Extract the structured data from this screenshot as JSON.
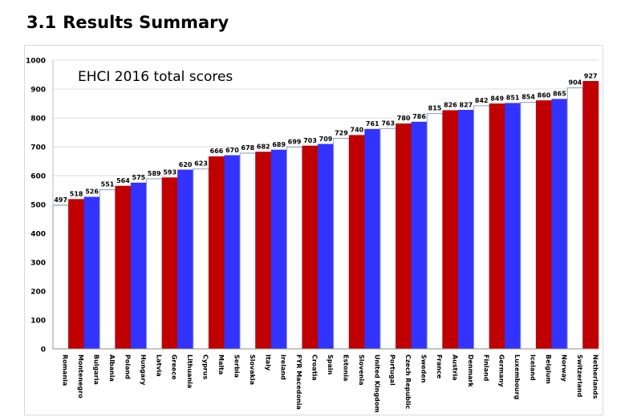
{
  "page": {
    "section_number": "3.1",
    "section_title": "Results Summary"
  },
  "colors": {
    "white_bar": "#ffffff",
    "red_bar": "#c00000",
    "blue_bar": "#3333ff",
    "outline": "#8a9bc7",
    "grid": "#dcdcdc"
  },
  "chart_data": {
    "type": "bar",
    "title": "EHCI 2016 total scores",
    "xlabel": "",
    "ylabel": "",
    "ylim": [
      0,
      1000
    ],
    "yticks": [
      0,
      100,
      200,
      300,
      400,
      500,
      600,
      700,
      800,
      900,
      1000
    ],
    "grid": true,
    "legend": "none",
    "categories": [
      "Romania",
      "Montenegro",
      "Bulgaria",
      "Albania",
      "Poland",
      "Hungary",
      "Latvia",
      "Greece",
      "Lithuania",
      "Cyprus",
      "Malta",
      "Serbia",
      "Slovakia",
      "Italy",
      "Ireland",
      "FYR Macedonia",
      "Croatia",
      "Spain",
      "Estonia",
      "Slovenia",
      "United Kingdom",
      "Portugal",
      "Czech Republic",
      "Sweden",
      "France",
      "Austria",
      "Denmark",
      "Finland",
      "Germany",
      "Luxembourg",
      "Iceland",
      "Belgium",
      "Norway",
      "Switzerland",
      "Netherlands"
    ],
    "values": [
      497,
      518,
      526,
      551,
      564,
      575,
      589,
      593,
      620,
      623,
      666,
      670,
      678,
      682,
      689,
      699,
      703,
      709,
      729,
      740,
      761,
      763,
      780,
      786,
      815,
      826,
      827,
      842,
      849,
      851,
      854,
      860,
      865,
      904,
      927
    ],
    "bar_colors": [
      "white",
      "red",
      "blue",
      "white",
      "red",
      "blue",
      "white",
      "red",
      "blue",
      "white",
      "red",
      "blue",
      "white",
      "red",
      "blue",
      "white",
      "red",
      "blue",
      "white",
      "red",
      "blue",
      "white",
      "red",
      "blue",
      "white",
      "red",
      "blue",
      "white",
      "red",
      "blue",
      "white",
      "red",
      "blue",
      "white",
      "red"
    ]
  }
}
